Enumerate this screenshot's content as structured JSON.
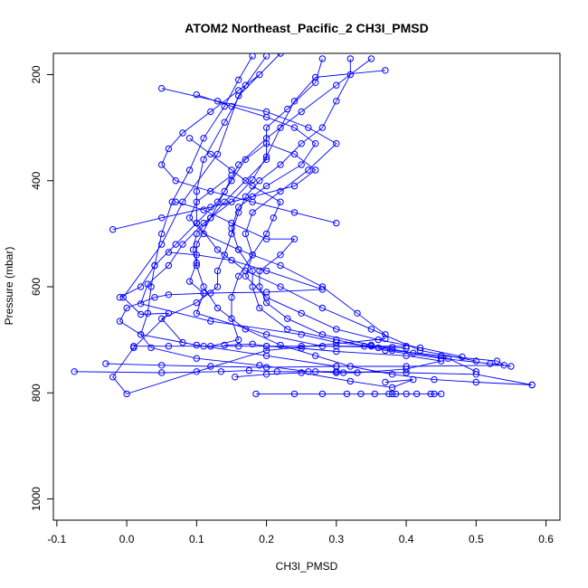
{
  "chart_data": {
    "type": "line",
    "title": "ATOM2 Northeast_Pacific_2 CH3I_PMSD",
    "xlabel": "CH3I_PMSD",
    "ylabel": "Pressure (mbar)",
    "xlim": [
      -0.105,
      0.62
    ],
    "ylim": [
      1040,
      160
    ],
    "y_reversed": true,
    "x_ticks": [
      -0.1,
      0,
      0.1,
      0.2,
      0.3,
      0.4,
      0.5,
      0.6
    ],
    "x_tick_labels": [
      "-0.1",
      "0.0",
      "0.1",
      "0.2",
      "0.3",
      "0.4",
      "0.5",
      "0.6"
    ],
    "y_ticks": [
      200,
      400,
      600,
      800,
      1000
    ],
    "y_tick_labels": [
      "200",
      "400",
      "600",
      "800",
      "1000"
    ],
    "grid": false,
    "legend": "none",
    "series": [
      {
        "color": "#0000ff",
        "marker": "open-circle",
        "x": [
          0.22,
          0.16,
          0.13,
          0.08,
          0.05,
          -0.005,
          0.02,
          0.06,
          0.01,
          -0.02,
          0.0,
          0.1,
          0.2,
          0.37
        ],
        "y": [
          160,
          240,
          350,
          440,
          520,
          620,
          652,
          650,
          715,
          770,
          802,
          760,
          720,
          698
        ]
      },
      {
        "color": "#0000ff",
        "marker": "open-circle",
        "x": [
          0.37,
          0.27,
          0.24,
          0.22,
          0.2,
          0.18,
          0.15,
          0.11,
          0.08,
          0.06,
          0.03,
          0.02,
          0.12,
          0.25,
          0.3,
          0.35,
          0.4
        ],
        "y": [
          192,
          205,
          250,
          300,
          355,
          398,
          440,
          480,
          520,
          560,
          595,
          632,
          665,
          690,
          705,
          712,
          712
        ]
      },
      {
        "color": "#0000ff",
        "marker": "open-circle",
        "x": [
          0.28,
          0.27,
          0.23,
          0.2,
          0.2,
          0.17,
          0.14,
          0.12,
          0.1,
          0.095,
          0.1,
          0.09,
          0.11,
          0.1,
          0.2,
          0.28,
          0.38,
          0.4
        ],
        "y": [
          170,
          215,
          265,
          300,
          360,
          400,
          440,
          470,
          500,
          530,
          555,
          590,
          612,
          650,
          690,
          712,
          714,
          716
        ]
      },
      {
        "color": "#0000ff",
        "marker": "open-circle",
        "x": [
          0.32,
          0.32,
          0.3,
          0.28,
          0.25,
          0.22,
          0.19,
          0.17,
          0.16,
          0.15,
          0.14,
          0.13,
          0.13,
          0.1,
          0.05,
          0.08
        ],
        "y": [
          170,
          200,
          250,
          300,
          330,
          370,
          400,
          430,
          460,
          500,
          540,
          570,
          600,
          630,
          660,
          705
        ]
      },
      {
        "color": "#0000ff",
        "marker": "open-circle",
        "x": [
          0.18,
          0.16,
          0.14,
          0.11,
          0.09,
          0.065,
          0.05,
          0.04,
          0.035,
          0.03,
          0.02,
          0.035,
          0.1,
          0.19,
          0.26,
          0.31
        ],
        "y": [
          165,
          210,
          260,
          320,
          380,
          440,
          500,
          560,
          600,
          650,
          690,
          715,
          735,
          748,
          760,
          762
        ]
      },
      {
        "color": "#0000ff",
        "marker": "open-circle",
        "x": [
          0.2,
          0.17,
          0.14,
          0.11,
          0.1,
          0.1,
          0.13,
          0.17,
          0.22,
          0.28,
          0.35,
          0.42,
          0.5
        ],
        "y": [
          165,
          220,
          290,
          360,
          420,
          480,
          530,
          570,
          600,
          640,
          680,
          720,
          740
        ]
      },
      {
        "color": "#0000ff",
        "marker": "open-circle",
        "x": [
          0.35,
          0.3,
          0.25,
          0.2,
          0.16,
          0.14,
          0.12,
          0.1,
          0.1,
          0.11,
          0.13,
          0.17,
          0.22,
          0.27,
          0.32,
          0.38,
          0.44,
          0.5,
          0.58
        ],
        "y": [
          170,
          220,
          270,
          320,
          370,
          420,
          470,
          520,
          560,
          600,
          640,
          680,
          710,
          730,
          750,
          765,
          775,
          780,
          785
        ]
      },
      {
        "color": "#0000ff",
        "marker": "open-circle",
        "x": [
          0.05,
          0.13,
          0.2,
          0.26,
          0.3,
          0.26,
          0.22,
          0.18,
          0.17,
          0.18,
          0.16,
          0.15,
          0.15,
          0.16,
          0.12
        ],
        "y": [
          226,
          250,
          270,
          300,
          330,
          380,
          420,
          460,
          500,
          540,
          580,
          620,
          660,
          700,
          712
        ]
      },
      {
        "color": "#0000ff",
        "marker": "open-circle",
        "x": [
          0.1,
          0.15,
          0.2,
          0.24,
          0.27,
          0.25,
          0.2,
          0.16,
          0.15,
          0.16,
          0.18,
          0.18,
          0.19,
          0.23,
          0.3,
          0.37,
          0.45,
          0.52,
          0.55
        ],
        "y": [
          238,
          260,
          280,
          300,
          330,
          370,
          410,
          450,
          490,
          530,
          570,
          600,
          640,
          680,
          700,
          720,
          735,
          745,
          750
        ]
      },
      {
        "color": "#0000ff",
        "marker": "open-circle",
        "x": [
          0.09,
          0.12,
          0.15,
          0.18,
          0.22,
          0.21,
          0.2,
          0.18,
          0.17,
          0.2,
          0.25,
          0.3,
          0.36,
          0.42,
          0.48
        ],
        "y": [
          320,
          350,
          380,
          410,
          440,
          470,
          500,
          540,
          580,
          620,
          650,
          680,
          700,
          715,
          732
        ]
      },
      {
        "color": "#0000ff",
        "marker": "open-circle",
        "x": [
          -0.02,
          0.05,
          0.12,
          0.18,
          0.24,
          0.27,
          0.24,
          0.2,
          0.17,
          0.15,
          0.13,
          0.1,
          0.07,
          0.04,
          0.02,
          -0.01
        ],
        "y": [
          492,
          470,
          450,
          430,
          410,
          380,
          350,
          330,
          360,
          400,
          440,
          480,
          520,
          560,
          600,
          620
        ]
      },
      {
        "color": "#0000ff",
        "marker": "open-circle",
        "x": [
          0.07,
          0.11,
          0.15,
          0.2,
          0.24,
          0.22,
          0.19,
          0.19,
          0.2,
          0.23,
          0.28,
          0.35,
          0.41,
          0.46,
          0.5
        ],
        "y": [
          440,
          455,
          480,
          510,
          510,
          540,
          570,
          600,
          630,
          660,
          690,
          710,
          725,
          735,
          760
        ]
      },
      {
        "color": "#0000ff",
        "marker": "open-circle",
        "x": [
          0.06,
          0.1,
          0.15,
          0.2,
          0.28,
          0.2,
          0.12,
          0.06,
          0.04,
          0.0,
          -0.01,
          0.02,
          0.1,
          0.2,
          0.3
        ],
        "y": [
          535,
          540,
          550,
          570,
          605,
          610,
          612,
          615,
          620,
          640,
          665,
          690,
          710,
          730,
          750
        ]
      },
      {
        "color": "#0000ff",
        "marker": "open-circle",
        "x": [
          0.14,
          0.18,
          0.2,
          0.25,
          0.3,
          0.4,
          0.45,
          0.4,
          0.33,
          0.3,
          0.27
        ],
        "y": [
          710,
          708,
          712,
          716,
          722,
          730,
          740,
          755,
          762,
          762,
          760
        ]
      },
      {
        "color": "#0000ff",
        "marker": "open-circle",
        "x": [
          -0.075,
          0.05,
          0.135,
          0.175,
          0.215,
          0.3,
          0.4,
          0.5,
          0.58
        ],
        "y": [
          760,
          762,
          760,
          758,
          760,
          760,
          762,
          765,
          785
        ]
      },
      {
        "color": "#0000ff",
        "marker": "open-circle",
        "x": [
          -0.03,
          0.05,
          0.12,
          0.2,
          0.3,
          0.4,
          0.54,
          0.53,
          0.45,
          0.38,
          0.36
        ],
        "y": [
          745,
          748,
          750,
          752,
          750,
          750,
          748,
          740,
          730,
          720,
          715
        ]
      },
      {
        "color": "#0000ff",
        "marker": "open-circle",
        "x": [
          0.185,
          0.24,
          0.28,
          0.315,
          0.335,
          0.355,
          0.375,
          0.38,
          0.385,
          0.4,
          0.415,
          0.435,
          0.44,
          0.45
        ],
        "y": [
          802,
          802,
          802,
          802,
          802,
          802,
          802,
          802,
          802,
          802,
          802,
          802,
          802,
          802
        ]
      },
      {
        "color": "#0000ff",
        "marker": "open-circle",
        "x": [
          0.155,
          0.2,
          0.25,
          0.32,
          0.38,
          0.41,
          0.37
        ],
        "y": [
          770,
          765,
          762,
          778,
          790,
          775,
          780
        ]
      },
      {
        "color": "#0000ff",
        "marker": "open-circle",
        "x": [
          0.15,
          0.1,
          0.09,
          0.11,
          0.16,
          0.22,
          0.28,
          0.33,
          0.37
        ],
        "y": [
          390,
          440,
          470,
          500,
          530,
          560,
          600,
          650,
          690
        ]
      },
      {
        "color": "#0000ff",
        "marker": "open-circle",
        "x": [
          0.19,
          0.16,
          0.12,
          0.08,
          0.06,
          0.05,
          0.07,
          0.12,
          0.18,
          0.24,
          0.3
        ],
        "y": [
          200,
          230,
          270,
          310,
          340,
          370,
          400,
          420,
          440,
          460,
          480
        ]
      },
      {
        "color": "#0000ff",
        "marker": "open-circle",
        "x": [
          0.01,
          0.06,
          0.11,
          0.16,
          0.2,
          0.25,
          0.3,
          0.34
        ],
        "y": [
          712,
          712,
          712,
          712,
          712,
          712,
          712,
          712
        ]
      }
    ]
  }
}
